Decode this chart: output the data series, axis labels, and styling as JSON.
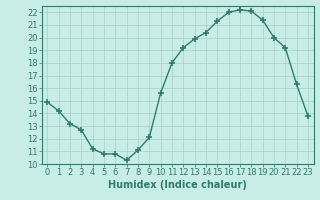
{
  "x": [
    0,
    1,
    2,
    3,
    4,
    5,
    6,
    7,
    8,
    9,
    10,
    11,
    12,
    13,
    14,
    15,
    16,
    17,
    18,
    19,
    20,
    21,
    22,
    23
  ],
  "y": [
    14.9,
    14.2,
    13.2,
    12.7,
    11.2,
    10.8,
    10.8,
    10.3,
    11.1,
    12.1,
    15.6,
    18.0,
    19.2,
    19.9,
    20.4,
    21.3,
    22.0,
    22.2,
    22.1,
    21.4,
    20.0,
    19.2,
    16.3,
    13.8
  ],
  "line_color": "#2d7d6c",
  "marker": "+",
  "markersize": 4,
  "markeredgewidth": 1.2,
  "linewidth": 1.0,
  "xlabel": "Humidex (Indice chaleur)",
  "xlim": [
    -0.5,
    23.5
  ],
  "ylim": [
    10,
    22.5
  ],
  "yticks": [
    10,
    11,
    12,
    13,
    14,
    15,
    16,
    17,
    18,
    19,
    20,
    21,
    22
  ],
  "xticks": [
    0,
    1,
    2,
    3,
    4,
    5,
    6,
    7,
    8,
    9,
    10,
    11,
    12,
    13,
    14,
    15,
    16,
    17,
    18,
    19,
    20,
    21,
    22,
    23
  ],
  "bg_color": "#c8ece6",
  "grid_color": "#a8cfc8",
  "font_color": "#2d7d6c",
  "xlabel_fontsize": 7,
  "tick_fontsize": 6
}
